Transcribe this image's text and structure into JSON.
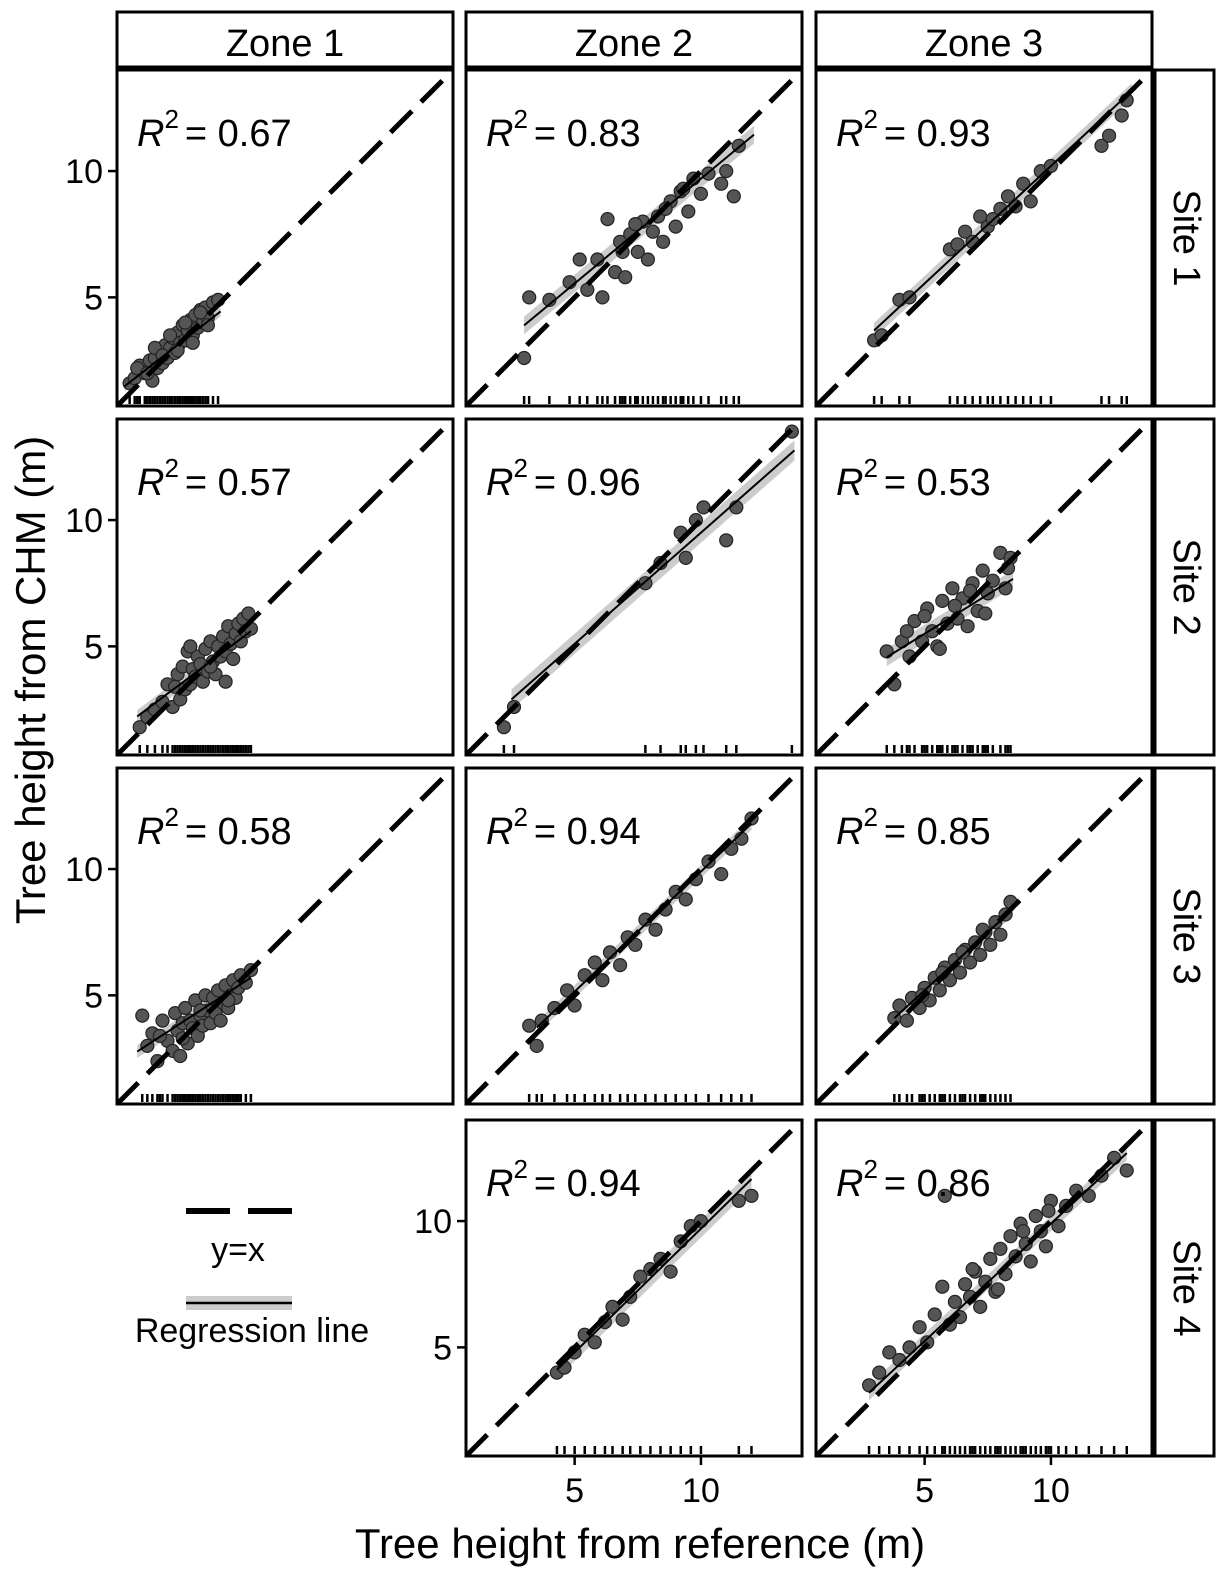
{
  "figure": {
    "xlabel": "Tree height from reference (m)",
    "ylabel": "Tree height from CHM (m)"
  },
  "legend": {
    "identity_label": "y=x",
    "regression_label": "Regression line"
  },
  "columns": [
    "Zone 1",
    "Zone 2",
    "Zone 3"
  ],
  "rows": [
    "Site 1",
    "Site 2",
    "Site 3",
    "Site 4"
  ],
  "colors": {
    "point": "#555555",
    "ribbon": "#cccccc",
    "line": "#000000"
  },
  "chart_data": {
    "type": "scatter",
    "facet": "grid",
    "xlim": [
      0.7,
      14.0
    ],
    "ylim": [
      0.7,
      14.0
    ],
    "xticks": [
      5,
      10
    ],
    "yticks": [
      5,
      10
    ],
    "panels": [
      {
        "id": "z1-s1",
        "row": 0,
        "col": 0,
        "r2_label": "0.67",
        "slope": 0.78,
        "intercept": 0.7,
        "ci": 0.2,
        "xr": [
          1.0,
          4.8
        ],
        "x": [
          1.2,
          1.4,
          1.6,
          1.8,
          2.0,
          2.1,
          2.2,
          2.3,
          2.4,
          2.5,
          2.6,
          2.7,
          2.8,
          2.9,
          3.0,
          3.1,
          3.2,
          3.3,
          3.4,
          3.5,
          3.6,
          3.7,
          3.8,
          3.9,
          4.0,
          4.1,
          4.2,
          4.3,
          4.5,
          4.7,
          1.5,
          1.9,
          2.2,
          2.5,
          2.8,
          3.1,
          3.4,
          3.7,
          4.0,
          4.3
        ],
        "y": [
          1.6,
          1.8,
          2.3,
          2.0,
          2.5,
          1.7,
          2.6,
          2.2,
          2.9,
          2.4,
          3.1,
          2.6,
          3.0,
          3.4,
          2.8,
          3.6,
          3.2,
          3.9,
          3.3,
          3.7,
          4.1,
          3.5,
          4.3,
          3.8,
          4.5,
          4.0,
          4.6,
          4.2,
          4.8,
          4.9,
          2.2,
          2.0,
          3.0,
          2.7,
          3.5,
          2.9,
          4.0,
          3.2,
          4.4,
          3.9
        ]
      },
      {
        "id": "z2-s1",
        "row": 0,
        "col": 1,
        "r2_label": "0.83",
        "slope": 0.83,
        "intercept": 1.4,
        "ci": 0.35,
        "xr": [
          3.0,
          12.1
        ],
        "x": [
          3.0,
          3.2,
          4.0,
          4.8,
          5.2,
          5.5,
          5.9,
          6.1,
          6.3,
          6.6,
          6.9,
          7.0,
          7.2,
          7.5,
          7.7,
          7.9,
          8.1,
          8.3,
          8.5,
          8.8,
          9.0,
          9.2,
          9.5,
          9.7,
          10.0,
          10.3,
          10.8,
          11.0,
          11.3,
          11.5,
          6.8,
          7.4,
          8.6,
          9.3
        ],
        "y": [
          2.6,
          5.0,
          4.9,
          5.6,
          6.5,
          5.3,
          6.5,
          5.0,
          8.1,
          6.0,
          6.8,
          5.8,
          7.5,
          6.8,
          8.0,
          6.5,
          7.6,
          8.2,
          7.2,
          8.8,
          7.8,
          9.2,
          8.4,
          9.7,
          9.1,
          9.9,
          9.5,
          10.0,
          9.0,
          11.0,
          7.2,
          7.9,
          8.5,
          9.3
        ]
      },
      {
        "id": "z3-s1",
        "row": 0,
        "col": 2,
        "r2_label": "0.93",
        "slope": 0.93,
        "intercept": 0.9,
        "ci": 0.3,
        "xr": [
          3.0,
          13.2
        ],
        "x": [
          3.0,
          3.3,
          4.0,
          4.4,
          6.0,
          6.3,
          6.6,
          6.9,
          7.2,
          7.5,
          7.7,
          8.0,
          8.3,
          8.6,
          8.9,
          9.2,
          9.6,
          10.0,
          12.0,
          12.3,
          12.8,
          13.0
        ],
        "y": [
          3.3,
          3.5,
          4.9,
          5.0,
          6.9,
          7.1,
          7.6,
          7.2,
          8.2,
          7.8,
          8.1,
          8.5,
          9.0,
          8.6,
          9.5,
          8.8,
          10.0,
          10.2,
          11.0,
          11.4,
          12.2,
          12.8
        ]
      },
      {
        "id": "z1-s2",
        "row": 1,
        "col": 0,
        "r2_label": "0.57",
        "slope": 0.75,
        "intercept": 1.1,
        "ci": 0.25,
        "xr": [
          1.5,
          6.0
        ],
        "x": [
          1.6,
          1.9,
          2.2,
          2.5,
          2.7,
          2.9,
          3.0,
          3.1,
          3.2,
          3.3,
          3.4,
          3.5,
          3.6,
          3.7,
          3.8,
          3.9,
          4.0,
          4.1,
          4.2,
          4.3,
          4.4,
          4.5,
          4.6,
          4.7,
          4.8,
          4.9,
          5.0,
          5.1,
          5.2,
          5.3,
          5.4,
          5.5,
          5.6,
          5.7,
          5.8,
          5.9,
          6.0,
          3.6,
          4.4,
          5.0
        ],
        "y": [
          1.8,
          2.2,
          2.5,
          2.8,
          3.5,
          2.6,
          3.4,
          3.9,
          2.9,
          4.2,
          3.3,
          4.8,
          3.5,
          4.1,
          3.8,
          4.6,
          4.3,
          3.6,
          4.9,
          4.0,
          5.2,
          4.4,
          3.9,
          5.0,
          4.6,
          5.4,
          4.8,
          5.8,
          5.1,
          4.5,
          5.5,
          5.9,
          5.2,
          6.1,
          5.6,
          6.3,
          5.7,
          5.0,
          4.2,
          3.6
        ]
      },
      {
        "id": "z2-s2",
        "row": 1,
        "col": 1,
        "r2_label": "0.96",
        "slope": 0.88,
        "intercept": 0.7,
        "ci": 0.4,
        "xr": [
          2.5,
          13.7
        ],
        "x": [
          2.2,
          2.6,
          7.8,
          8.4,
          9.2,
          9.4,
          9.8,
          10.1,
          11.0,
          11.4,
          13.6
        ],
        "y": [
          1.8,
          2.6,
          7.5,
          8.3,
          9.5,
          8.5,
          10.0,
          10.5,
          9.2,
          10.5,
          13.5
        ]
      },
      {
        "id": "z3-s2",
        "row": 1,
        "col": 2,
        "r2_label": "0.53",
        "slope": 0.62,
        "intercept": 2.4,
        "ci": 0.35,
        "xr": [
          3.5,
          8.5
        ],
        "x": [
          3.5,
          3.8,
          4.1,
          4.4,
          4.6,
          4.9,
          5.1,
          5.3,
          5.5,
          5.7,
          5.9,
          6.1,
          6.3,
          6.5,
          6.7,
          6.9,
          7.1,
          7.3,
          7.5,
          7.7,
          8.0,
          8.2,
          8.4,
          4.3,
          5.0,
          5.6,
          6.2,
          6.8,
          7.4,
          8.3
        ],
        "y": [
          4.8,
          3.5,
          5.2,
          4.6,
          6.0,
          5.2,
          6.5,
          5.6,
          5.0,
          6.8,
          5.9,
          7.3,
          6.1,
          6.9,
          5.8,
          7.5,
          6.4,
          8.0,
          7.1,
          7.6,
          8.7,
          7.3,
          8.5,
          5.6,
          6.2,
          4.9,
          6.6,
          7.2,
          6.3,
          8.1
        ]
      },
      {
        "id": "z1-s3",
        "row": 2,
        "col": 0,
        "r2_label": "0.58",
        "slope": 0.65,
        "intercept": 1.8,
        "ci": 0.25,
        "xr": [
          1.5,
          6.0
        ],
        "x": [
          1.7,
          1.9,
          2.1,
          2.3,
          2.5,
          2.7,
          2.9,
          3.0,
          3.1,
          3.2,
          3.3,
          3.4,
          3.5,
          3.6,
          3.7,
          3.8,
          3.9,
          4.0,
          4.1,
          4.2,
          4.3,
          4.4,
          4.5,
          4.6,
          4.7,
          4.8,
          4.9,
          5.0,
          5.1,
          5.2,
          5.3,
          5.4,
          5.5,
          5.6,
          5.8,
          6.0,
          2.4,
          3.3,
          4.0,
          5.1
        ],
        "y": [
          4.2,
          3.0,
          3.5,
          2.4,
          4.0,
          3.2,
          2.8,
          4.3,
          3.6,
          2.6,
          3.9,
          4.5,
          3.1,
          4.0,
          3.7,
          4.8,
          3.4,
          4.2,
          3.8,
          5.0,
          4.4,
          3.9,
          4.9,
          4.3,
          5.2,
          4.0,
          4.7,
          5.4,
          4.5,
          5.0,
          5.6,
          4.9,
          5.3,
          5.8,
          5.5,
          6.0,
          3.4,
          3.3,
          4.4,
          4.8
        ]
      },
      {
        "id": "z2-s3",
        "row": 2,
        "col": 1,
        "r2_label": "0.94",
        "slope": 0.95,
        "intercept": 0.4,
        "ci": 0.25,
        "xr": [
          3.5,
          12.0
        ],
        "x": [
          3.2,
          3.5,
          3.7,
          4.2,
          4.7,
          5.0,
          5.4,
          5.8,
          6.1,
          6.4,
          6.8,
          7.1,
          7.4,
          7.8,
          8.2,
          8.6,
          9.0,
          9.4,
          9.8,
          10.3,
          10.8,
          11.2,
          11.6,
          12.0
        ],
        "y": [
          3.8,
          3.0,
          4.0,
          4.5,
          5.2,
          4.6,
          5.8,
          6.3,
          5.6,
          6.7,
          6.2,
          7.3,
          7.0,
          8.0,
          7.6,
          8.4,
          9.1,
          8.8,
          9.6,
          10.3,
          9.8,
          10.8,
          11.2,
          12.0
        ]
      },
      {
        "id": "z3-s3",
        "row": 2,
        "col": 2,
        "r2_label": "0.85",
        "slope": 0.92,
        "intercept": 0.6,
        "ci": 0.25,
        "xr": [
          3.8,
          8.5
        ],
        "x": [
          3.8,
          4.0,
          4.3,
          4.5,
          4.8,
          5.0,
          5.2,
          5.4,
          5.6,
          5.8,
          6.0,
          6.2,
          6.4,
          6.6,
          6.8,
          7.0,
          7.2,
          7.4,
          7.6,
          7.8,
          8.0,
          8.2,
          8.4,
          4.9,
          5.7,
          6.5,
          7.3
        ],
        "y": [
          4.1,
          4.6,
          4.0,
          4.9,
          4.5,
          5.3,
          4.8,
          5.7,
          5.2,
          6.1,
          5.6,
          6.4,
          5.9,
          6.8,
          6.3,
          7.1,
          6.6,
          7.5,
          7.0,
          7.9,
          7.4,
          8.2,
          8.7,
          5.0,
          5.9,
          6.7,
          7.6
        ]
      },
      {
        "id": "z2-s4",
        "row": 3,
        "col": 1,
        "r2_label": "0.94",
        "slope": 0.98,
        "intercept": -0.1,
        "ci": 0.35,
        "xr": [
          4.3,
          12.0
        ],
        "x": [
          4.3,
          4.6,
          5.0,
          5.4,
          5.8,
          6.2,
          6.5,
          6.9,
          7.2,
          7.6,
          8.0,
          8.4,
          8.8,
          9.2,
          9.6,
          10.0,
          11.5,
          12.0
        ],
        "y": [
          4.0,
          4.2,
          4.8,
          5.5,
          5.2,
          6.0,
          6.6,
          6.1,
          7.0,
          7.8,
          8.1,
          8.5,
          8.0,
          9.2,
          9.8,
          10.0,
          10.8,
          11.0
        ]
      },
      {
        "id": "z3-s4",
        "row": 3,
        "col": 2,
        "r2_label": "0.86",
        "slope": 0.93,
        "intercept": 0.6,
        "ci": 0.3,
        "xr": [
          2.8,
          13.0
        ],
        "x": [
          2.8,
          3.2,
          3.6,
          4.0,
          4.4,
          4.8,
          5.1,
          5.4,
          5.7,
          6.0,
          6.2,
          6.4,
          6.6,
          6.8,
          7.0,
          7.2,
          7.4,
          7.6,
          7.8,
          8.0,
          8.2,
          8.4,
          8.6,
          8.8,
          9.0,
          9.2,
          9.4,
          9.6,
          9.8,
          10.0,
          10.3,
          10.6,
          11.0,
          11.5,
          12.0,
          12.5,
          13.0,
          5.8,
          6.9,
          7.9,
          8.9,
          9.9
        ],
        "y": [
          3.5,
          4.0,
          4.8,
          4.5,
          5.0,
          5.8,
          5.2,
          6.3,
          7.4,
          5.9,
          6.8,
          6.2,
          7.5,
          7.0,
          8.0,
          6.6,
          7.6,
          8.5,
          7.2,
          8.9,
          7.9,
          9.4,
          8.6,
          9.9,
          9.1,
          8.4,
          10.2,
          9.6,
          9.0,
          10.8,
          9.8,
          10.6,
          11.2,
          11.0,
          11.8,
          12.5,
          12.0,
          11.0,
          8.1,
          7.3,
          9.6,
          10.4
        ]
      }
    ]
  }
}
